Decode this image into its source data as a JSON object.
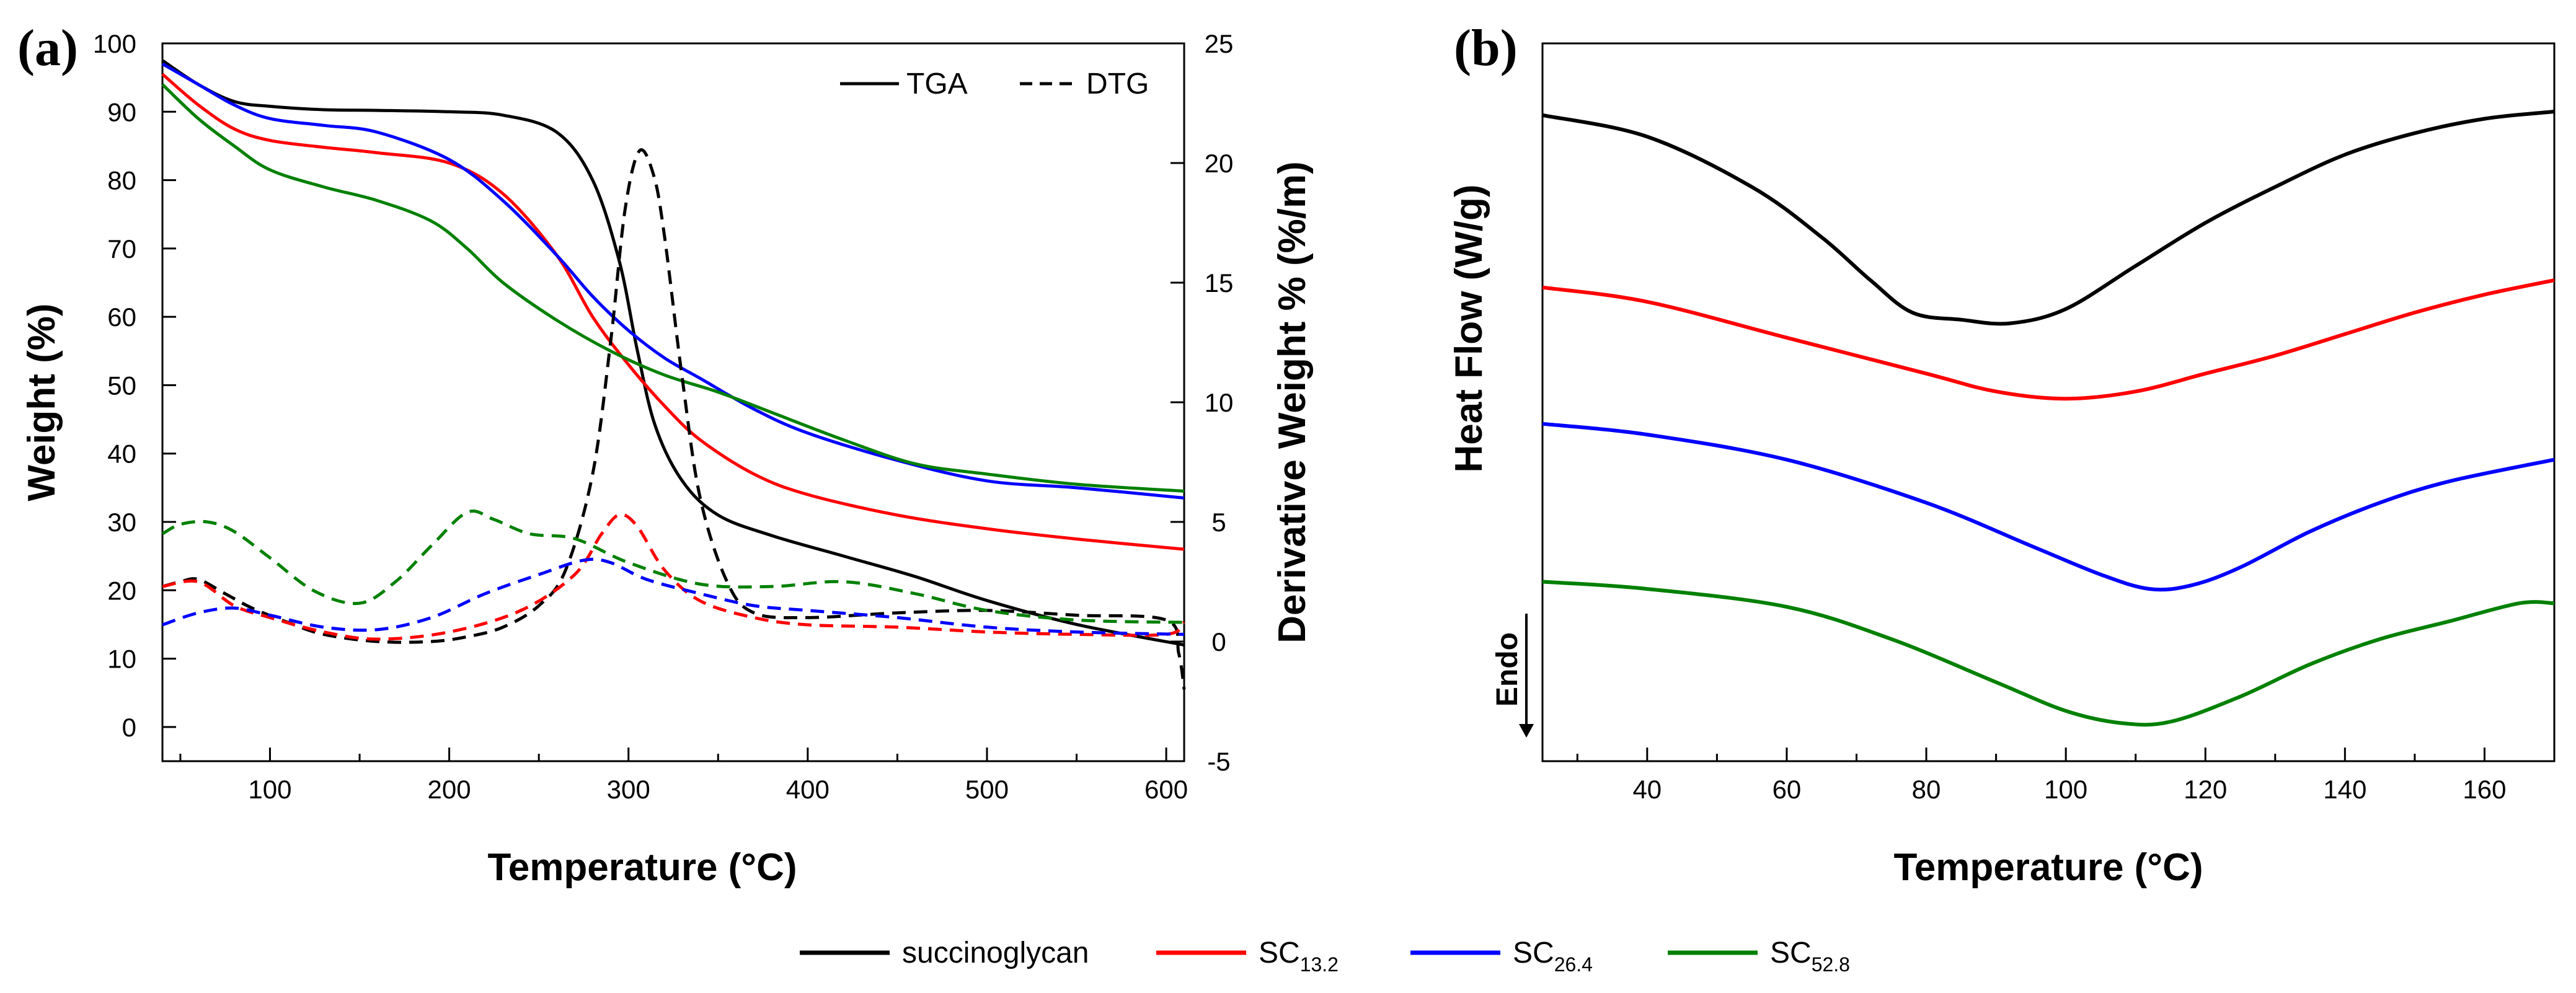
{
  "legend": [
    {
      "label": "succinoglycan",
      "sub": "",
      "color": "#000000"
    },
    {
      "label": "SC",
      "sub": "13.2",
      "color": "#ff0000"
    },
    {
      "label": "SC",
      "sub": "26.4",
      "color": "#0000ff"
    },
    {
      "label": "SC",
      "sub": "52.8",
      "color": "#008000"
    }
  ],
  "chart_data": [
    {
      "type": "line",
      "panel_label": "(a)",
      "xlabel": "Temperature (°C)",
      "ylabel": "Weight (%)",
      "ylabel_right": "Derivative Weight % (%/m)",
      "xlim": [
        40,
        610
      ],
      "ylim": [
        -5,
        100
      ],
      "ylim_right": [
        -5,
        25
      ],
      "xticks": [
        "100",
        "200",
        "300",
        "400",
        "500",
        "600"
      ],
      "yticks": [
        "0",
        "10",
        "20",
        "30",
        "40",
        "50",
        "60",
        "70",
        "80",
        "90",
        "100"
      ],
      "yticks_right": [
        "-5",
        "0",
        "5",
        "10",
        "15",
        "20",
        "25"
      ],
      "legend_entries": [
        {
          "label": "TGA",
          "style": "solid"
        },
        {
          "label": "DTG",
          "style": "dashed"
        }
      ],
      "series": [
        {
          "name": "succinoglycan TGA",
          "color": "#000000",
          "style": "solid",
          "axis": "left",
          "x": [
            40,
            60,
            80,
            100,
            130,
            160,
            200,
            230,
            260,
            280,
            295,
            305,
            315,
            330,
            350,
            380,
            420,
            460,
            500,
            550,
            610
          ],
          "y": [
            97.5,
            94,
            91.5,
            90.8,
            90.3,
            90.2,
            90,
            89.5,
            87,
            80,
            68,
            55,
            44,
            36,
            31,
            28,
            25,
            22,
            18.5,
            15,
            12
          ]
        },
        {
          "name": "SC13.2 TGA",
          "color": "#ff0000",
          "style": "solid",
          "axis": "left",
          "x": [
            40,
            60,
            80,
            100,
            130,
            160,
            200,
            230,
            260,
            280,
            300,
            320,
            340,
            370,
            400,
            450,
            500,
            550,
            610
          ],
          "y": [
            95.5,
            91,
            87.5,
            85.8,
            84.8,
            84,
            82.5,
            78,
            69,
            60,
            53,
            47,
            42,
            37,
            34,
            31,
            29,
            27.5,
            26
          ]
        },
        {
          "name": "SC26.4 TGA",
          "color": "#0000ff",
          "style": "solid",
          "axis": "left",
          "x": [
            40,
            60,
            80,
            100,
            130,
            160,
            200,
            230,
            260,
            280,
            300,
            320,
            340,
            370,
            400,
            450,
            500,
            550,
            610
          ],
          "y": [
            97,
            94,
            91,
            89,
            88,
            87,
            83,
            77,
            69,
            63,
            58,
            54,
            51,
            46.5,
            43,
            39,
            36,
            35,
            33.5
          ]
        },
        {
          "name": "SC52.8 TGA",
          "color": "#008000",
          "style": "solid",
          "axis": "left",
          "x": [
            40,
            60,
            80,
            100,
            130,
            160,
            190,
            210,
            230,
            260,
            290,
            320,
            350,
            380,
            420,
            460,
            500,
            550,
            610
          ],
          "y": [
            94,
            89,
            85,
            81.5,
            79,
            77,
            74,
            70,
            65,
            59.5,
            55,
            51.5,
            49,
            46,
            42,
            38.5,
            37,
            35.5,
            34.5
          ]
        },
        {
          "name": "succinoglycan DTG",
          "color": "#000000",
          "style": "dashed",
          "axis": "right",
          "x": [
            40,
            50,
            60,
            75,
            90,
            110,
            130,
            160,
            190,
            210,
            230,
            250,
            265,
            280,
            290,
            298,
            306,
            314,
            320,
            330,
            340,
            355,
            370,
            400,
            450,
            500,
            550,
            600,
            607,
            610
          ],
          "y": [
            2.3,
            2.5,
            2.6,
            2,
            1.4,
            0.8,
            0.3,
            0,
            0,
            0.2,
            0.6,
            1.5,
            3,
            7,
            12.5,
            18,
            20.5,
            19.5,
            17,
            11,
            6,
            2.5,
            1.2,
            1,
            1.2,
            1.3,
            1.1,
            0.9,
            -0.5,
            -2
          ]
        },
        {
          "name": "SC13.2 DTG",
          "color": "#ff0000",
          "style": "dashed",
          "axis": "right",
          "x": [
            40,
            60,
            80,
            100,
            130,
            160,
            200,
            240,
            270,
            285,
            295,
            305,
            320,
            340,
            370,
            400,
            450,
            500,
            550,
            600,
            610
          ],
          "y": [
            2.3,
            2.5,
            1.5,
            1,
            0.4,
            0.1,
            0.4,
            1.3,
            2.8,
            4.5,
            5.3,
            4.8,
            3,
            1.7,
            1,
            0.7,
            0.6,
            0.4,
            0.3,
            0.3,
            0.8
          ]
        },
        {
          "name": "SC26.4 DTG",
          "color": "#0000ff",
          "style": "dashed",
          "axis": "right",
          "x": [
            40,
            60,
            80,
            100,
            130,
            160,
            190,
            220,
            250,
            275,
            290,
            310,
            340,
            370,
            400,
            450,
            500,
            550,
            610
          ],
          "y": [
            0.7,
            1.2,
            1.4,
            1.1,
            0.6,
            0.5,
            1,
            2,
            2.8,
            3.4,
            3.3,
            2.6,
            2,
            1.5,
            1.3,
            1,
            0.6,
            0.4,
            0.3
          ]
        },
        {
          "name": "SC52.8 DTG",
          "color": "#008000",
          "style": "dashed",
          "axis": "right",
          "x": [
            40,
            50,
            65,
            80,
            100,
            125,
            150,
            170,
            190,
            210,
            225,
            245,
            270,
            300,
            340,
            380,
            420,
            460,
            500,
            550,
            610
          ],
          "y": [
            4.5,
            4.9,
            5,
            4.6,
            3.5,
            2.1,
            1.6,
            2.5,
            4,
            5.4,
            5.1,
            4.5,
            4.3,
            3.3,
            2.4,
            2.3,
            2.5,
            2,
            1.3,
            0.9,
            0.8
          ]
        }
      ]
    },
    {
      "type": "line",
      "panel_label": "(b)",
      "xlabel": "Temperature (°C)",
      "ylabel": "Heat Flow (W/g)",
      "endo_label": "Endo",
      "xlim": [
        25,
        170
      ],
      "ylim": [
        0,
        100
      ],
      "xticks": [
        "40",
        "60",
        "80",
        "100",
        "120",
        "140",
        "160"
      ],
      "series": [
        {
          "name": "succinoglycan",
          "color": "#000000",
          "style": "solid",
          "x": [
            25,
            40,
            55,
            65,
            72,
            78,
            85,
            92,
            100,
            110,
            120,
            130,
            140,
            150,
            160,
            170
          ],
          "y": [
            90,
            87,
            80,
            73,
            67,
            62.5,
            61.5,
            61,
            63,
            69,
            75,
            80,
            84.5,
            87.5,
            89.5,
            90.5
          ]
        },
        {
          "name": "SC13.2",
          "color": "#ff0000",
          "style": "solid",
          "x": [
            25,
            40,
            60,
            80,
            90,
            100,
            110,
            120,
            130,
            140,
            150,
            160,
            170
          ],
          "y": [
            66,
            64,
            59,
            54,
            51.5,
            50.5,
            51.5,
            54,
            56.5,
            59.5,
            62.5,
            65,
            67
          ]
        },
        {
          "name": "SC26.4",
          "color": "#0000ff",
          "style": "solid",
          "x": [
            25,
            40,
            60,
            80,
            95,
            105,
            112,
            118,
            125,
            135,
            145,
            155,
            170
          ],
          "y": [
            47,
            45.5,
            42,
            36,
            30,
            26,
            24,
            24.5,
            27,
            32,
            36,
            39,
            42
          ]
        },
        {
          "name": "SC52.8",
          "color": "#008000",
          "style": "solid",
          "x": [
            25,
            40,
            60,
            75,
            90,
            100,
            108,
            115,
            125,
            135,
            145,
            155,
            165,
            170
          ],
          "y": [
            25,
            24,
            21.5,
            17,
            11,
            7,
            5.3,
            5.5,
            9,
            13.5,
            17,
            19.5,
            22,
            22
          ]
        }
      ]
    }
  ]
}
